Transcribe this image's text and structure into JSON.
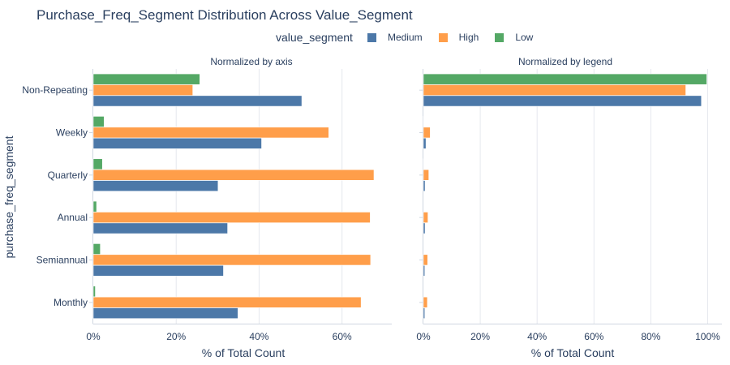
{
  "title": "Purchase_Freq_Segment Distribution Across Value_Segment",
  "legend": {
    "title": "value_segment",
    "items": [
      {
        "label": "Medium",
        "color": "#4c78a8"
      },
      {
        "label": "High",
        "color": "#ff9e4a"
      },
      {
        "label": "Low",
        "color": "#54a865"
      }
    ]
  },
  "y_axis_label": "purchase_freq_segment",
  "chart_data": [
    {
      "type": "bar",
      "orientation": "horizontal",
      "subtitle": "Normalized by axis",
      "xlabel": "% of Total Count",
      "xlim": [
        0,
        0.72
      ],
      "xticks": [
        {
          "v": 0,
          "label": "0%"
        },
        {
          "v": 0.2,
          "label": "20%"
        },
        {
          "v": 0.4,
          "label": "40%"
        },
        {
          "v": 0.6,
          "label": "60%"
        }
      ],
      "categories": [
        "Non-Repeating",
        "Weekly",
        "Quarterly",
        "Annual",
        "Semiannual",
        "Monthly"
      ],
      "series": [
        {
          "name": "Medium",
          "color": "#4c78a8",
          "values": [
            0.503,
            0.406,
            0.301,
            0.324,
            0.314,
            0.349
          ]
        },
        {
          "name": "High",
          "color": "#ff9e4a",
          "values": [
            0.24,
            0.568,
            0.677,
            0.668,
            0.669,
            0.646
          ]
        },
        {
          "name": "Low",
          "color": "#54a865",
          "values": [
            0.257,
            0.026,
            0.022,
            0.008,
            0.017,
            0.005
          ]
        }
      ]
    },
    {
      "type": "bar",
      "orientation": "horizontal",
      "subtitle": "Normalized by legend",
      "xlabel": "% of Total Count",
      "xlim": [
        0,
        1.05
      ],
      "xticks": [
        {
          "v": 0,
          "label": "0%"
        },
        {
          "v": 0.2,
          "label": "20%"
        },
        {
          "v": 0.4,
          "label": "40%"
        },
        {
          "v": 0.6,
          "label": "60%"
        },
        {
          "v": 0.8,
          "label": "80%"
        },
        {
          "v": 1.0,
          "label": "100%"
        }
      ],
      "categories": [
        "Non-Repeating",
        "Weekly",
        "Quarterly",
        "Annual",
        "Semiannual",
        "Monthly"
      ],
      "series": [
        {
          "name": "Medium",
          "color": "#4c78a8",
          "values": [
            0.978,
            0.009,
            0.006,
            0.006,
            0.005,
            0.005
          ]
        },
        {
          "name": "High",
          "color": "#ff9e4a",
          "values": [
            0.923,
            0.024,
            0.019,
            0.016,
            0.015,
            0.014
          ]
        },
        {
          "name": "Low",
          "color": "#54a865",
          "values": [
            0.997,
            0.001,
            0.001,
            0.0,
            0.0,
            0.0
          ]
        }
      ]
    }
  ]
}
